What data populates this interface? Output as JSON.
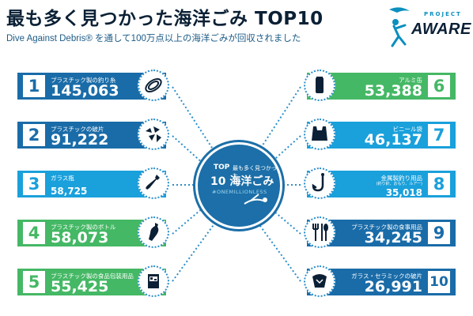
{
  "header": {
    "title": "最も多く見つかった海洋ごみ TOP10",
    "subtitle": "Dive Against Debris® を通して100万点以上の海洋ごみが回収されました"
  },
  "logo": {
    "top": "PROJECT",
    "main": "AWARE"
  },
  "center": {
    "top": "TOP",
    "top_small": "最も多く見つかった",
    "main": "10 海洋ごみ",
    "hashtag": "#ONEMILLIONLESS"
  },
  "items": [
    {
      "rank": "1",
      "label": "プラスチック製の釣り糸",
      "value": "145,063",
      "icon": "fishing-line-icon",
      "color": "#1a6ca8"
    },
    {
      "rank": "2",
      "label": "プラスチックの破片",
      "value": "91,222",
      "icon": "plastic-fragments-icon",
      "color": "#1a6ca8"
    },
    {
      "rank": "3",
      "label": "ガラス瓶",
      "value": "58,725",
      "icon": "glass-bottle-icon",
      "color": "#1aa0db"
    },
    {
      "rank": "4",
      "label": "プラスチック製のボトル",
      "value": "58,073",
      "icon": "plastic-bottle-icon",
      "color": "#45b865"
    },
    {
      "rank": "5",
      "label": "プラスチック製の食品包装用品",
      "value": "55,425",
      "icon": "food-wrapper-icon",
      "color": "#45b865"
    },
    {
      "rank": "6",
      "label": "アルミ缶",
      "value": "53,388",
      "icon": "aluminum-can-icon",
      "color": "#45b865"
    },
    {
      "rank": "7",
      "label": "ビニール袋",
      "value": "46,137",
      "icon": "plastic-bag-icon",
      "color": "#1aa0db"
    },
    {
      "rank": "8",
      "label": "金属製釣り用品",
      "value": "35,018",
      "sublabel": "(釣り針、おもり、ルアー)",
      "icon": "fishing-hook-icon",
      "color": "#1aa0db"
    },
    {
      "rank": "9",
      "label": "プラスチック製の食事用品",
      "value": "34,245",
      "icon": "cutlery-icon",
      "color": "#1a6ca8"
    },
    {
      "rank": "10",
      "label": "ガラス・セラミックの破片",
      "value": "26,991",
      "icon": "ceramic-pieces-icon",
      "color": "#1a6ca8"
    }
  ]
}
